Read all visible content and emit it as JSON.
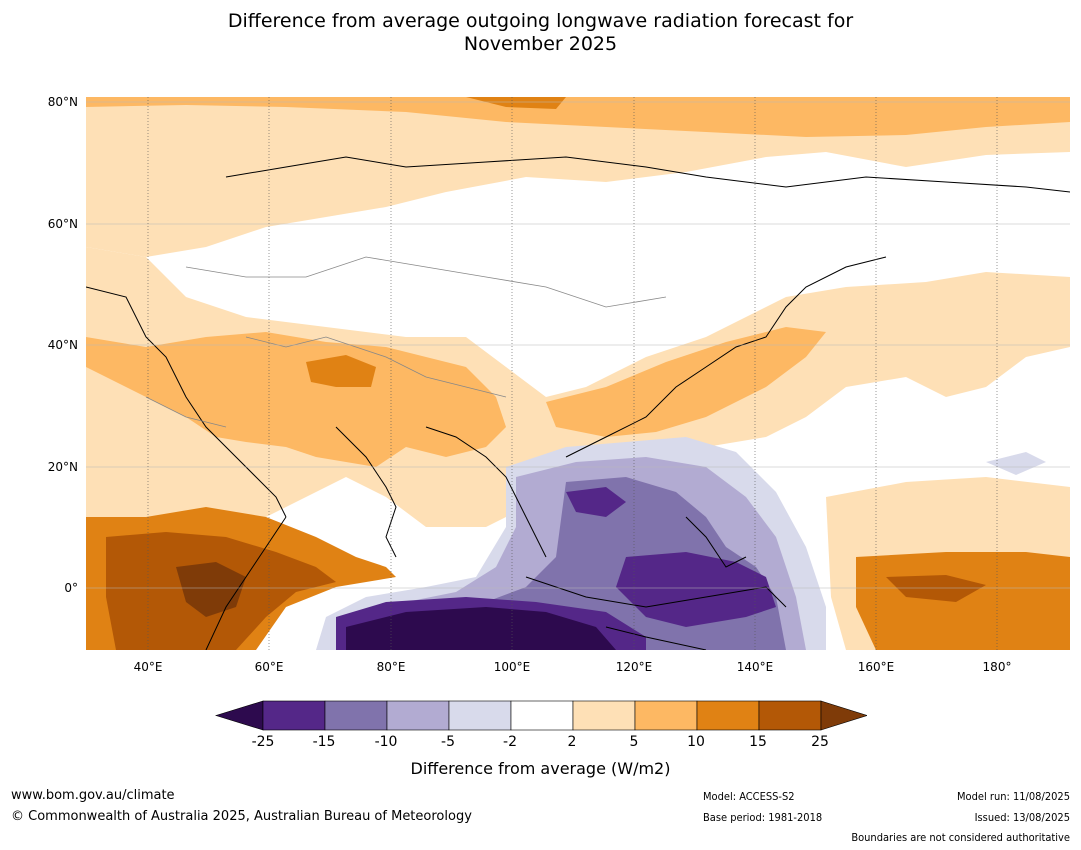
{
  "title_line1": "Difference from average outgoing longwave radiation forecast for",
  "title_line2": "November 2025",
  "lat_labels": [
    "80°N",
    "60°N",
    "40°N",
    "20°N",
    "0°"
  ],
  "lon_labels": [
    "40°E",
    "60°E",
    "80°E",
    "100°E",
    "120°E",
    "140°E",
    "160°E",
    "180°"
  ],
  "colorbar": {
    "ticks": [
      "-25",
      "-15",
      "-10",
      "-5",
      "-2",
      "2",
      "5",
      "10",
      "15",
      "25"
    ],
    "label": "Difference from average (W/m2)",
    "colors": [
      "#2d0a4e",
      "#542788",
      "#8073ac",
      "#b2abd2",
      "#d8daeb",
      "#ffffff",
      "#fee0b6",
      "#fdb863",
      "#e08214",
      "#b35806",
      "#7f3b08"
    ]
  },
  "footer": {
    "website": "www.bom.gov.au/climate",
    "copyright": "© Commonwealth of Australia 2025, Australian Bureau of Meteorology",
    "model": "Model: ACCESS-S2",
    "base_period": "Base period: 1981-2018",
    "model_run": "Model run: 11/08/2025",
    "issued": "Issued: 13/08/2025",
    "disclaimer": "Boundaries are not considered authoritative"
  }
}
